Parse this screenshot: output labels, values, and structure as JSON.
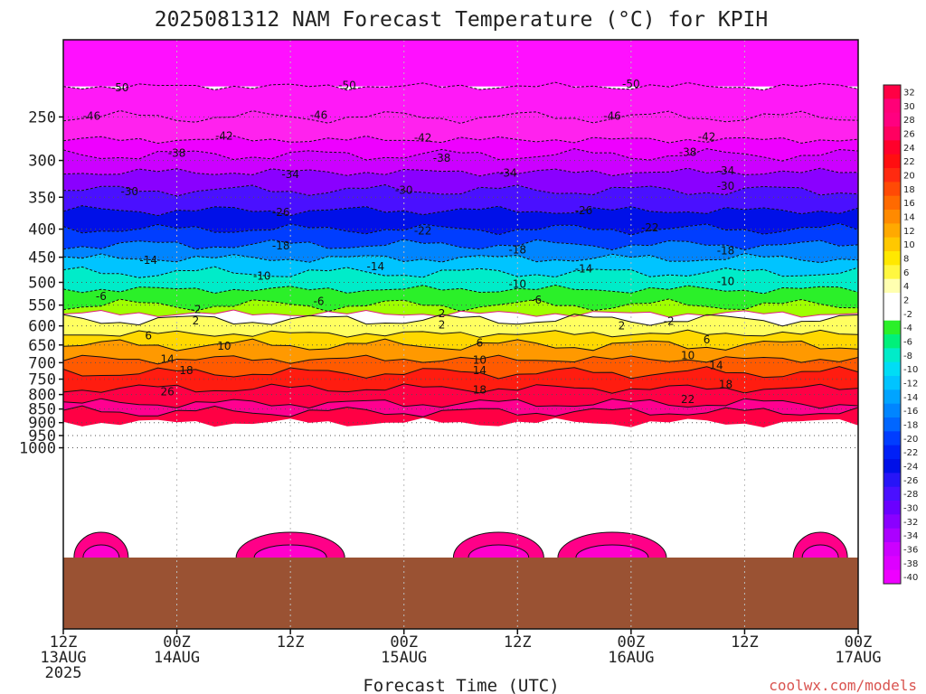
{
  "chart_data": {
    "type": "heatmap",
    "title": "2025081312 NAM Forecast Temperature (°C) for KPIH",
    "xlabel": "Forecast Time (UTC)",
    "ylabel": "",
    "y_scale": "log-pressure",
    "y_ticks": [
      "250",
      "300",
      "350",
      "400",
      "450",
      "500",
      "550",
      "600",
      "650",
      "700",
      "750",
      "800",
      "850",
      "900",
      "950",
      "1000"
    ],
    "x_ticks": [
      {
        "lines": [
          "12Z",
          "13AUG",
          "2025"
        ]
      },
      {
        "lines": [
          "00Z",
          "14AUG"
        ]
      },
      {
        "lines": [
          "12Z"
        ]
      },
      {
        "lines": [
          "00Z",
          "15AUG"
        ]
      },
      {
        "lines": [
          "12Z"
        ]
      },
      {
        "lines": [
          "00Z",
          "16AUG"
        ]
      },
      {
        "lines": [
          "12Z"
        ]
      },
      {
        "lines": [
          "00Z",
          "17AUG"
        ]
      }
    ],
    "colorbar_labels": [
      "32",
      "30",
      "28",
      "26",
      "24",
      "22",
      "20",
      "18",
      "16",
      "14",
      "12",
      "10",
      "8",
      "6",
      "4",
      "2",
      "-2",
      "-4",
      "-6",
      "-8",
      "-10",
      "-12",
      "-14",
      "-16",
      "-18",
      "-20",
      "-22",
      "-24",
      "-26",
      "-28",
      "-30",
      "-32",
      "-34",
      "-36",
      "-38",
      "-40"
    ],
    "isotherm_profile": [
      {
        "pressure": 220,
        "temp": -50
      },
      {
        "pressure": 250,
        "temp": -46
      },
      {
        "pressure": 275,
        "temp": -42
      },
      {
        "pressure": 293,
        "temp": -38
      },
      {
        "pressure": 315,
        "temp": -34
      },
      {
        "pressure": 340,
        "temp": -30
      },
      {
        "pressure": 370,
        "temp": -26
      },
      {
        "pressure": 400,
        "temp": -22
      },
      {
        "pressure": 427,
        "temp": -18
      },
      {
        "pressure": 452,
        "temp": -14
      },
      {
        "pressure": 480,
        "temp": -10
      },
      {
        "pressure": 515,
        "temp": -6
      },
      {
        "pressure": 550,
        "temp": -2
      },
      {
        "pressure": 570,
        "temp": 0
      },
      {
        "pressure": 585,
        "temp": 2
      },
      {
        "pressure": 620,
        "temp": 6
      },
      {
        "pressure": 650,
        "temp": 10
      },
      {
        "pressure": 690,
        "temp": 14
      },
      {
        "pressure": 730,
        "temp": 18
      },
      {
        "pressure": 780,
        "temp": 22
      },
      {
        "pressure": 830,
        "temp": 26
      },
      {
        "pressure": 860,
        "temp": 30
      }
    ],
    "contour_labels": [
      {
        "text": "-50",
        "x": 6,
        "p": 221
      },
      {
        "text": "-50",
        "x": 30,
        "p": 219
      },
      {
        "text": "-50",
        "x": 60,
        "p": 218
      },
      {
        "text": "-46",
        "x": 3,
        "p": 249
      },
      {
        "text": "-46",
        "x": 27,
        "p": 248
      },
      {
        "text": "-46",
        "x": 58,
        "p": 249
      },
      {
        "text": "-42",
        "x": 17,
        "p": 271
      },
      {
        "text": "-42",
        "x": 38,
        "p": 273
      },
      {
        "text": "-42",
        "x": 68,
        "p": 272
      },
      {
        "text": "-38",
        "x": 12,
        "p": 291
      },
      {
        "text": "-38",
        "x": 40,
        "p": 297
      },
      {
        "text": "-38",
        "x": 66,
        "p": 290
      },
      {
        "text": "-34",
        "x": 24,
        "p": 318
      },
      {
        "text": "-34",
        "x": 47,
        "p": 316
      },
      {
        "text": "-34",
        "x": 70,
        "p": 313
      },
      {
        "text": "-30",
        "x": 7,
        "p": 342
      },
      {
        "text": "-30",
        "x": 36,
        "p": 340
      },
      {
        "text": "-30",
        "x": 70,
        "p": 334
      },
      {
        "text": "-26",
        "x": 23,
        "p": 373
      },
      {
        "text": "-26",
        "x": 55,
        "p": 370
      },
      {
        "text": "-22",
        "x": 38,
        "p": 403
      },
      {
        "text": "-22",
        "x": 62,
        "p": 398
      },
      {
        "text": "-18",
        "x": 23,
        "p": 429
      },
      {
        "text": "-18",
        "x": 48,
        "p": 436
      },
      {
        "text": "-18",
        "x": 70,
        "p": 438
      },
      {
        "text": "-14",
        "x": 9,
        "p": 456
      },
      {
        "text": "-14",
        "x": 33,
        "p": 468
      },
      {
        "text": "-14",
        "x": 55,
        "p": 472
      },
      {
        "text": "-10",
        "x": 21,
        "p": 487
      },
      {
        "text": "-10",
        "x": 48,
        "p": 504
      },
      {
        "text": "-10",
        "x": 70,
        "p": 498
      },
      {
        "text": "-6",
        "x": 4,
        "p": 530
      },
      {
        "text": "-6",
        "x": 27,
        "p": 541
      },
      {
        "text": "-6",
        "x": 50,
        "p": 538
      },
      {
        "text": "-2",
        "x": 14,
        "p": 560
      },
      {
        "text": "-2",
        "x": 64,
        "p": 588
      },
      {
        "text": "2",
        "x": 14,
        "p": 587
      },
      {
        "text": "2",
        "x": 40,
        "p": 598
      },
      {
        "text": "2",
        "x": 59,
        "p": 600
      },
      {
        "text": "2",
        "x": 40,
        "p": 570
      },
      {
        "text": "6",
        "x": 9,
        "p": 625
      },
      {
        "text": "6",
        "x": 44,
        "p": 644
      },
      {
        "text": "6",
        "x": 68,
        "p": 636
      },
      {
        "text": "10",
        "x": 17,
        "p": 653
      },
      {
        "text": "10",
        "x": 44,
        "p": 692
      },
      {
        "text": "10",
        "x": 66,
        "p": 680
      },
      {
        "text": "14",
        "x": 11,
        "p": 690
      },
      {
        "text": "14",
        "x": 44,
        "p": 724
      },
      {
        "text": "14",
        "x": 69,
        "p": 708
      },
      {
        "text": "18",
        "x": 13,
        "p": 723
      },
      {
        "text": "18",
        "x": 44,
        "p": 785
      },
      {
        "text": "18",
        "x": 70,
        "p": 767
      },
      {
        "text": "22",
        "x": 66,
        "p": 816
      },
      {
        "text": "26",
        "x": 11,
        "p": 790
      }
    ]
  },
  "credit": "coolwx.com/models"
}
